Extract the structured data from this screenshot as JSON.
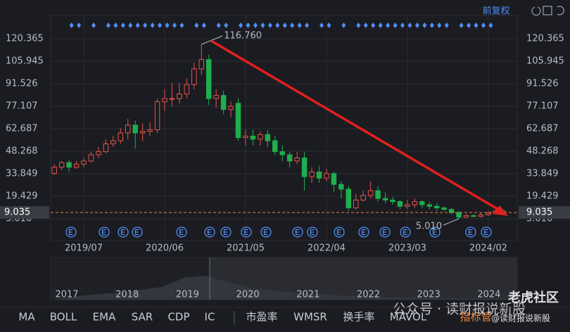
{
  "chart_data": {
    "type": "candlestick",
    "adjustment": "前复权",
    "categories": [
      null,
      null,
      null,
      null,
      "2019/07",
      null,
      null,
      null,
      null,
      null,
      null,
      null,
      null,
      null,
      null,
      "2020/06",
      null,
      null,
      null,
      null,
      null,
      null,
      null,
      null,
      null,
      null,
      "2021/05",
      null,
      null,
      null,
      null,
      null,
      null,
      null,
      null,
      null,
      null,
      "2022/04",
      null,
      null,
      null,
      null,
      null,
      null,
      null,
      null,
      null,
      null,
      "2023/03",
      null,
      null,
      null,
      null,
      null,
      null,
      null,
      null,
      null,
      null,
      "2024/02",
      null,
      null
    ],
    "series": [
      {
        "up_color": "#e5534b",
        "down_color": "#1fae4e",
        "open": [
          34,
          38,
          41,
          38,
          40,
          42,
          46,
          48,
          53,
          55,
          60,
          65,
          60,
          61,
          62,
          80,
          82,
          82,
          85,
          91,
          101,
          107,
          82,
          84,
          75,
          79,
          57,
          58,
          56,
          59,
          55,
          48,
          46,
          42,
          44,
          32,
          35,
          31,
          34,
          27,
          24,
          12,
          17,
          20,
          23,
          18,
          17,
          16,
          13,
          14,
          16,
          14,
          13,
          12,
          11,
          9,
          6,
          7,
          6.5,
          7.5,
          8.5,
          10
        ],
        "high": [
          40,
          42,
          43,
          42,
          44,
          48,
          51,
          56,
          58,
          63,
          69,
          68,
          66,
          67,
          82,
          88,
          92,
          92,
          95,
          105,
          116.76,
          110,
          88,
          87,
          80,
          82,
          62,
          62,
          61,
          62,
          58,
          52,
          48,
          48,
          48,
          38,
          39,
          37,
          35,
          29,
          26,
          21,
          23,
          29,
          26,
          22,
          19,
          17,
          17,
          18,
          17,
          16,
          15,
          13,
          12,
          10,
          8,
          8,
          9,
          10,
          11,
          11
        ],
        "low": [
          33,
          36,
          35,
          37,
          38,
          41,
          44,
          47,
          51,
          53,
          56,
          50,
          55,
          58,
          60,
          74,
          77,
          79,
          82,
          88,
          97,
          78,
          76,
          72,
          70,
          55,
          52,
          52,
          52,
          51,
          46,
          42,
          38,
          40,
          23,
          28,
          28,
          29,
          22,
          18,
          10,
          11,
          16,
          18,
          16,
          15,
          14,
          11,
          11,
          12,
          12,
          11,
          10,
          10,
          8,
          5.01,
          5.5,
          5.8,
          6,
          7,
          8,
          8.5
        ],
        "close": [
          38,
          41,
          38,
          40,
          42,
          46,
          48,
          53,
          55,
          60,
          65,
          60,
          61,
          62,
          80,
          82,
          82,
          85,
          91,
          101,
          107,
          82,
          84,
          75,
          77,
          57,
          58,
          56,
          59,
          55,
          48,
          46,
          42,
          44,
          32,
          35,
          31,
          34,
          27,
          24,
          12,
          17,
          20,
          23,
          18,
          17,
          16,
          13,
          14,
          16,
          14,
          13,
          12,
          11,
          9,
          6,
          7,
          6.5,
          7.5,
          8.5,
          10,
          9.035
        ]
      }
    ],
    "ylim": [
      1.86,
      127.125
    ],
    "yticks": [
      {
        "value": 5.01,
        "label": "5.010"
      },
      19.429,
      33.849,
      48.268,
      62.687,
      77.107,
      91.526,
      105.945,
      120.365
    ],
    "grid": true,
    "max_annotation": {
      "value": 116.76,
      "label": "116.760"
    },
    "min_annotation": {
      "value": 5.01,
      "label": "5.010"
    },
    "current_price": 9.035,
    "price_line_color": "#e8833a",
    "navigator_years": [
      "2017",
      "2018",
      "2019",
      "2020",
      "2021",
      "2022",
      "2023",
      "2024"
    ]
  },
  "toolbar": [
    "MA",
    "BOLL",
    "EMA",
    "SAR",
    "CDP",
    "IC",
    "市盈率",
    "WMSR",
    "换手率",
    "MAVOL",
    "指标管"
  ],
  "watermark": {
    "account": "公众号 · 读财报说新股",
    "community": "老虎社区",
    "handle": "@读财报说新股"
  }
}
